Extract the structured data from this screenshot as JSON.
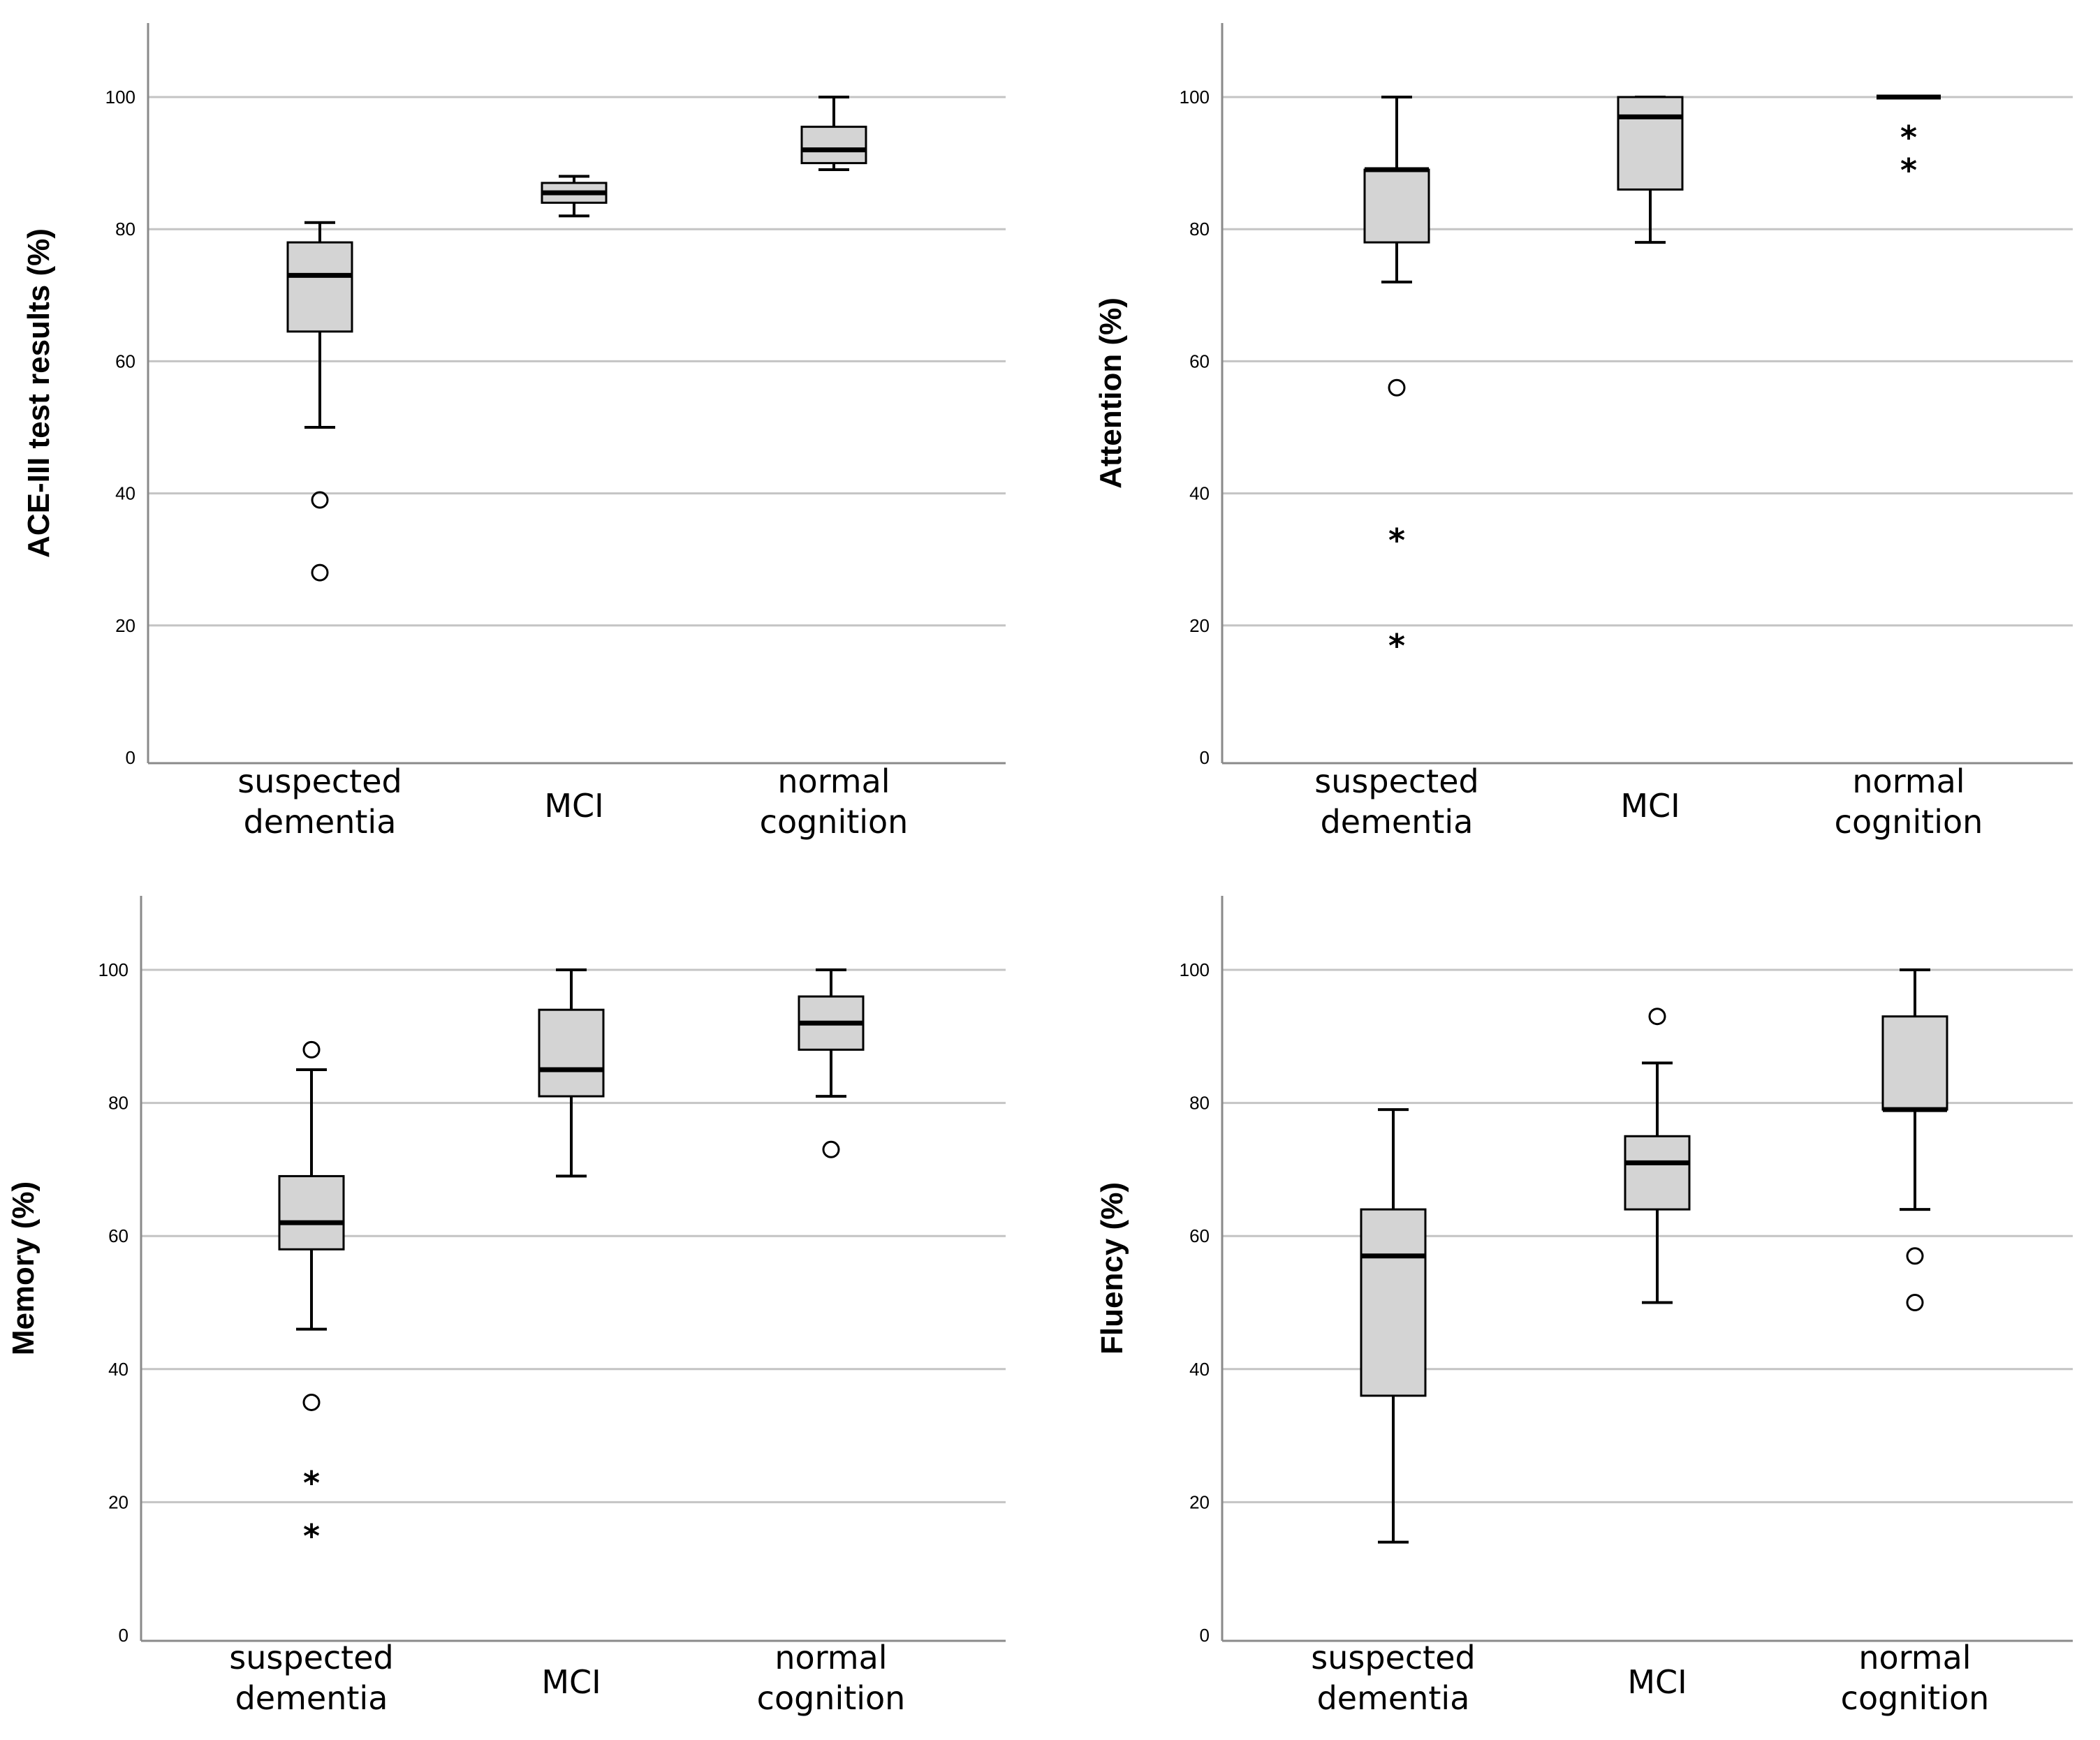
{
  "chart_data": [
    {
      "type": "boxplot",
      "ylabel": "ACE-III test results (%)",
      "ylim": [
        0,
        111
      ],
      "yticks": [
        0,
        20,
        40,
        60,
        80,
        100
      ],
      "grid": true,
      "categories": [
        {
          "label": [
            "suspected",
            "dementia"
          ],
          "min": 50,
          "q1": 64.5,
          "median": 73,
          "q3": 78,
          "max": 81,
          "outliers": [
            {
              "value": 39,
              "marker": "o"
            },
            {
              "value": 28,
              "marker": "o"
            }
          ]
        },
        {
          "label": [
            "MCI"
          ],
          "min": 82,
          "q1": 84,
          "median": 85.5,
          "q3": 87,
          "max": 88,
          "outliers": []
        },
        {
          "label": [
            "normal",
            "cognition"
          ],
          "min": 89,
          "q1": 90,
          "median": 92,
          "q3": 95.5,
          "max": 100,
          "outliers": []
        }
      ]
    },
    {
      "type": "boxplot",
      "ylabel": "Attention (%)",
      "ylim": [
        0,
        111
      ],
      "yticks": [
        0,
        20,
        40,
        60,
        80,
        100
      ],
      "grid": true,
      "categories": [
        {
          "label": [
            "suspected",
            "dementia"
          ],
          "min": 72,
          "q1": 78,
          "median": 89,
          "q3": 89,
          "max": 100,
          "outliers": [
            {
              "value": 56,
              "marker": "o"
            },
            {
              "value": 33,
              "marker": "*"
            },
            {
              "value": 17,
              "marker": "*"
            }
          ]
        },
        {
          "label": [
            "MCI"
          ],
          "min": 78,
          "q1": 86,
          "median": 97,
          "q3": 100,
          "max": 100,
          "outliers": []
        },
        {
          "label": [
            "normal",
            "cognition"
          ],
          "min": 100,
          "q1": 100,
          "median": 100,
          "q3": 100,
          "max": 100,
          "outliers": [
            {
              "value": 94,
              "marker": "*"
            },
            {
              "value": 89,
              "marker": "*"
            }
          ]
        }
      ]
    },
    {
      "type": "boxplot",
      "ylabel": "Memory (%)",
      "ylim": [
        0,
        111
      ],
      "yticks": [
        0,
        20,
        40,
        60,
        80,
        100
      ],
      "grid": true,
      "categories": [
        {
          "label": [
            "suspected",
            "dementia"
          ],
          "min": 46,
          "q1": 58,
          "median": 62,
          "q3": 69,
          "max": 85,
          "outliers": [
            {
              "value": 88,
              "marker": "o"
            },
            {
              "value": 35,
              "marker": "o"
            },
            {
              "value": 23,
              "marker": "*"
            },
            {
              "value": 15,
              "marker": "*"
            }
          ]
        },
        {
          "label": [
            "MCI"
          ],
          "min": 69,
          "q1": 81,
          "median": 85,
          "q3": 94,
          "max": 100,
          "outliers": []
        },
        {
          "label": [
            "normal",
            "cognition"
          ],
          "min": 81,
          "q1": 88,
          "median": 92,
          "q3": 96,
          "max": 100,
          "outliers": [
            {
              "value": 73,
              "marker": "o"
            }
          ]
        }
      ]
    },
    {
      "type": "boxplot",
      "ylabel": "Fluency (%)",
      "ylim": [
        0,
        111
      ],
      "yticks": [
        0,
        20,
        40,
        60,
        80,
        100
      ],
      "grid": true,
      "categories": [
        {
          "label": [
            "suspected",
            "dementia"
          ],
          "min": 14,
          "q1": 36,
          "median": 57,
          "q3": 64,
          "max": 79,
          "outliers": []
        },
        {
          "label": [
            "MCI"
          ],
          "min": 50,
          "q1": 64,
          "median": 71,
          "q3": 75,
          "max": 86,
          "outliers": [
            {
              "value": 93,
              "marker": "o"
            }
          ]
        },
        {
          "label": [
            "normal",
            "cognition"
          ],
          "min": 64,
          "q1": 79,
          "median": 79,
          "q3": 93,
          "max": 100,
          "outliers": [
            {
              "value": 57,
              "marker": "o"
            },
            {
              "value": 50,
              "marker": "o"
            }
          ]
        }
      ]
    }
  ],
  "colors": {
    "box_fill": "#d4d4d4",
    "gridline": "#c4c4c4",
    "axis": "#8a8a8a",
    "ink": "#000000",
    "background": "#ffffff"
  }
}
